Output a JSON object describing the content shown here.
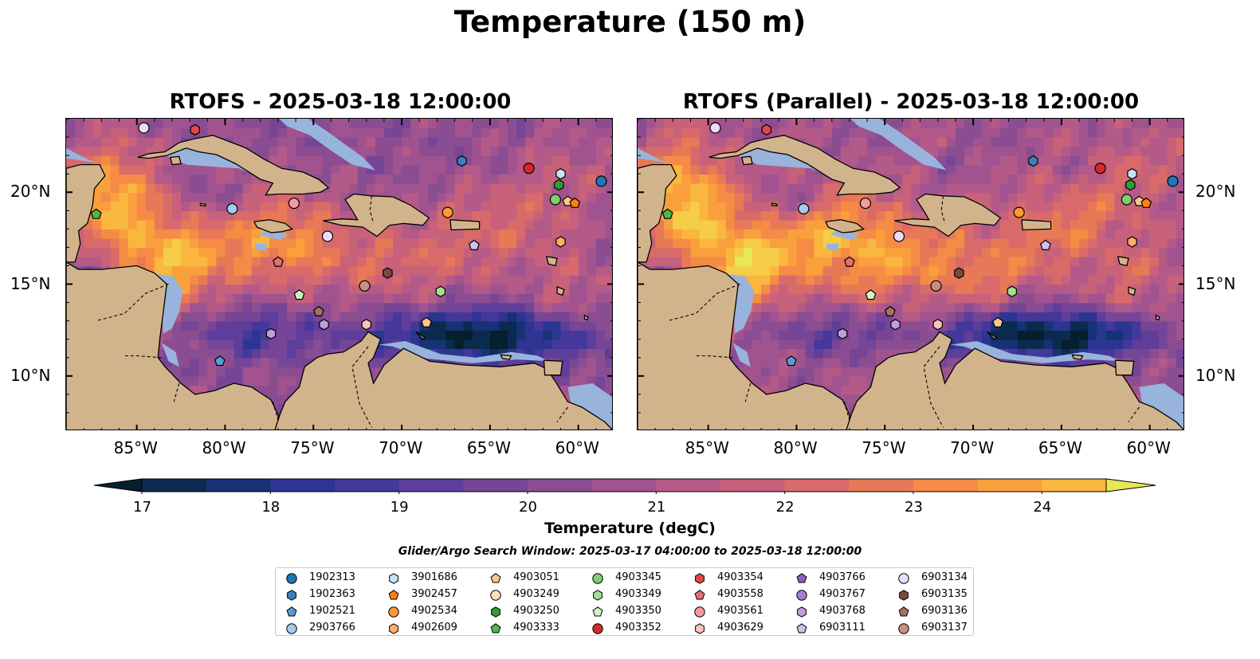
{
  "suptitle": "Temperature (150 m)",
  "panels": [
    {
      "title": "RTOFS - 2025-03-18 12:00:00"
    },
    {
      "title": "RTOFS (Parallel) - 2025-03-18 12:00:00"
    }
  ],
  "colors": {
    "land": "#d2b48c",
    "shallow": "#98b4dc",
    "colormap": [
      "#061f2e",
      "#0b2b4e",
      "#173275",
      "#2c3592",
      "#44389a",
      "#5e3e9a",
      "#774596",
      "#8b4d92",
      "#a0538f",
      "#b45a88",
      "#c8617a",
      "#d86b6a",
      "#e87957",
      "#f58b45",
      "#f9a03d",
      "#f9b73f",
      "#f5cd47",
      "#e6e856"
    ]
  },
  "chart_data": {
    "type": "map",
    "title": "Temperature (150 m)",
    "variable": "Temperature (degC)",
    "depth": "150 m",
    "colorbar": {
      "label": "Temperature (degC)",
      "ticks": [
        17,
        18,
        19,
        20,
        21,
        22,
        23,
        24
      ],
      "range": [
        17,
        24.5
      ],
      "step": 0.5,
      "extend": "both"
    },
    "x_axis": {
      "ticks": [
        "85°W",
        "80°W",
        "75°W",
        "70°W",
        "65°W",
        "60°W"
      ],
      "lon_range": [
        -89,
        -58
      ]
    },
    "y_axis": {
      "ticks": [
        "20°N",
        "15°N",
        "10°N"
      ],
      "lat_range": [
        7,
        24
      ]
    },
    "search_window": "Glider/Argo Search Window: 2025-03-17 04:00:00 to 2025-03-18 12:00:00",
    "legend": [
      {
        "id": "1902313",
        "marker": "circle",
        "color": "#1f77b4"
      },
      {
        "id": "1902363",
        "marker": "hexagon",
        "color": "#3a80c0"
      },
      {
        "id": "1902521",
        "marker": "pentagon",
        "color": "#5a9bd4"
      },
      {
        "id": "2903766",
        "marker": "circle",
        "color": "#a6c8ec"
      },
      {
        "id": "3901686",
        "marker": "hexagon",
        "color": "#c6e2f6"
      },
      {
        "id": "3902457",
        "marker": "pentagon",
        "color": "#ff7f0e"
      },
      {
        "id": "4902534",
        "marker": "circle",
        "color": "#ff9933"
      },
      {
        "id": "4902609",
        "marker": "hexagon",
        "color": "#ffad66"
      },
      {
        "id": "4903051",
        "marker": "pentagon",
        "color": "#ffc58a"
      },
      {
        "id": "4903249",
        "marker": "circle",
        "color": "#ffe1c0"
      },
      {
        "id": "4903250",
        "marker": "hexagon",
        "color": "#2ca02c"
      },
      {
        "id": "4903333",
        "marker": "pentagon",
        "color": "#4cb84c"
      },
      {
        "id": "4903345",
        "marker": "circle",
        "color": "#7ccf6c"
      },
      {
        "id": "4903349",
        "marker": "hexagon",
        "color": "#a5e08f"
      },
      {
        "id": "4903350",
        "marker": "pentagon",
        "color": "#cff5c2"
      },
      {
        "id": "4903352",
        "marker": "circle",
        "color": "#d62728"
      },
      {
        "id": "4903354",
        "marker": "hexagon",
        "color": "#e04848"
      },
      {
        "id": "4903558",
        "marker": "pentagon",
        "color": "#eb6e6e"
      },
      {
        "id": "4903561",
        "marker": "circle",
        "color": "#f49a9a"
      },
      {
        "id": "4903629",
        "marker": "hexagon",
        "color": "#fbc0c0"
      },
      {
        "id": "4903766",
        "marker": "pentagon",
        "color": "#8c5ec0"
      },
      {
        "id": "4903767",
        "marker": "circle",
        "color": "#a57ed0"
      },
      {
        "id": "4903768",
        "marker": "hexagon",
        "color": "#bd9fe0"
      },
      {
        "id": "6903111",
        "marker": "pentagon",
        "color": "#d3bef0"
      },
      {
        "id": "6903134",
        "marker": "circle",
        "color": "#ecdcfc"
      },
      {
        "id": "6903135",
        "marker": "hexagon",
        "color": "#7a4a40"
      },
      {
        "id": "6903136",
        "marker": "pentagon",
        "color": "#a5705e"
      },
      {
        "id": "6903137",
        "marker": "circle",
        "color": "#c98e82"
      }
    ],
    "floats": [
      {
        "id": "6903134",
        "lon": -84.6,
        "lat": 23.5
      },
      {
        "id": "4903354",
        "lon": -81.7,
        "lat": 23.4
      },
      {
        "id": "1902363",
        "lon": -66.6,
        "lat": 21.7
      },
      {
        "id": "4903352",
        "lon": -62.8,
        "lat": 21.3
      },
      {
        "id": "3901686",
        "lon": -61.0,
        "lat": 21.0
      },
      {
        "id": "1902313",
        "lon": -58.7,
        "lat": 20.6
      },
      {
        "id": "4903250",
        "lon": -61.1,
        "lat": 20.4
      },
      {
        "id": "4903345",
        "lon": -61.3,
        "lat": 19.6
      },
      {
        "id": "4903051",
        "lon": -60.6,
        "lat": 19.5
      },
      {
        "id": "3902457",
        "lon": -60.2,
        "lat": 19.4
      },
      {
        "id": "4903333",
        "lon": -87.3,
        "lat": 18.8
      },
      {
        "id": "2903766",
        "lon": -79.6,
        "lat": 19.1
      },
      {
        "id": "4903561",
        "lon": -76.1,
        "lat": 19.4
      },
      {
        "id": "4902534",
        "lon": -67.4,
        "lat": 18.9
      },
      {
        "id": "6903134",
        "lon": -74.2,
        "lat": 17.6
      },
      {
        "id": "4902609",
        "lon": -61.0,
        "lat": 17.3
      },
      {
        "id": "6903111",
        "lon": -65.9,
        "lat": 17.1
      },
      {
        "id": "4903558",
        "lon": -77.0,
        "lat": 16.2
      },
      {
        "id": "6903135",
        "lon": -70.8,
        "lat": 15.6
      },
      {
        "id": "6903137",
        "lon": -72.1,
        "lat": 14.9
      },
      {
        "id": "4903349",
        "lon": -67.8,
        "lat": 14.6
      },
      {
        "id": "4903350",
        "lon": -75.8,
        "lat": 14.4
      },
      {
        "id": "6903136",
        "lon": -74.7,
        "lat": 13.5
      },
      {
        "id": "4903768",
        "lon": -74.4,
        "lat": 12.8
      },
      {
        "id": "4903629",
        "lon": -72.0,
        "lat": 12.8
      },
      {
        "id": "4903051",
        "lon": -68.6,
        "lat": 12.9
      },
      {
        "id": "4903768",
        "lon": -77.4,
        "lat": 12.3
      },
      {
        "id": "1902521",
        "lon": -80.3,
        "lat": 10.8
      }
    ]
  }
}
